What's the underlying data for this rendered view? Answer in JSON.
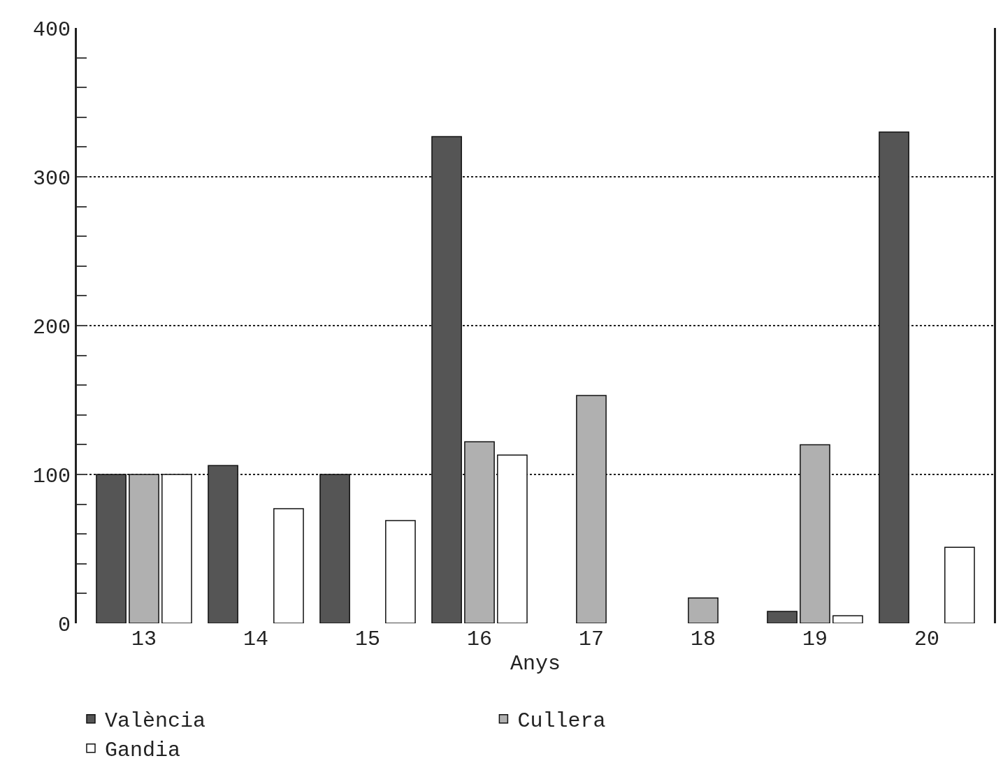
{
  "chart_data": {
    "type": "bar",
    "xlabel": "Anys",
    "categories": [
      "13",
      "14",
      "15",
      "16",
      "17",
      "18",
      "19",
      "20"
    ],
    "series": [
      {
        "name": "València",
        "color": "#555555",
        "values": [
          100,
          106,
          100,
          327,
          null,
          null,
          8,
          330
        ]
      },
      {
        "name": "Cullera",
        "color": "#b0b0b0",
        "values": [
          100,
          null,
          null,
          122,
          153,
          17,
          120,
          null
        ]
      },
      {
        "name": "Gandia",
        "color": "#ffffff",
        "values": [
          100,
          77,
          69,
          113,
          null,
          null,
          5,
          51
        ]
      }
    ],
    "ylim": [
      0,
      400
    ],
    "yticks": [
      0,
      {
        "value": 20,
        "label": null
      },
      {
        "value": 40,
        "label": null
      },
      {
        "value": 60,
        "label": null
      },
      {
        "value": 80,
        "label": null
      },
      100,
      {
        "value": 120,
        "label": null
      },
      {
        "value": 140,
        "label": null
      },
      {
        "value": 160,
        "label": null
      },
      {
        "value": 180,
        "label": null
      },
      200,
      {
        "value": 220,
        "label": null
      },
      {
        "value": 240,
        "label": null
      },
      {
        "value": 260,
        "label": null
      },
      {
        "value": 280,
        "label": null
      },
      300,
      {
        "value": 320,
        "label": null
      },
      {
        "value": 340,
        "label": null
      },
      {
        "value": 360,
        "label": null
      },
      {
        "value": 380,
        "label": null
      },
      400
    ],
    "grid": "y",
    "legend": "bottom"
  }
}
